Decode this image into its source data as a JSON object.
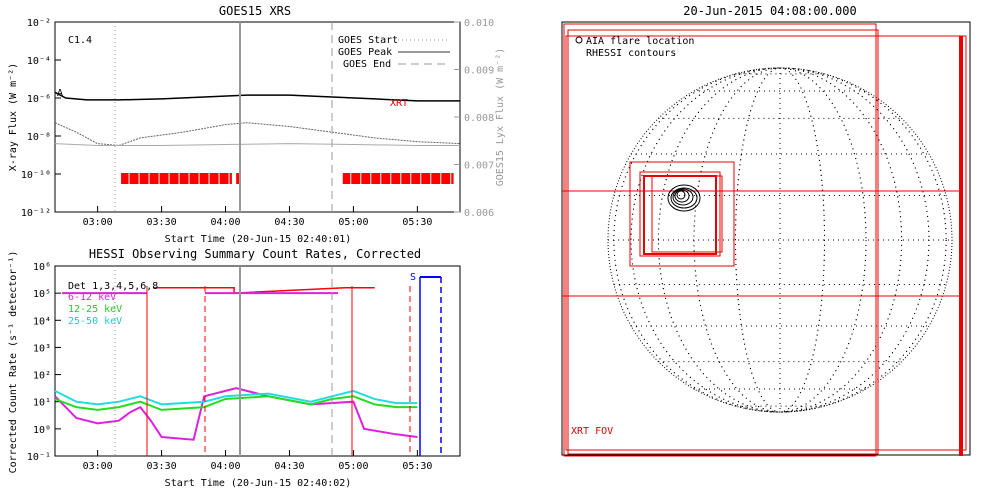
{
  "goes": {
    "title": "GOES15 XRS",
    "class_label": "C1.4",
    "xlabel": "Start Time (20-Jun-15 02:40:01)",
    "ylabel": "X-ray Flux (W m⁻²)",
    "y2label": "GOES15 Lyx Flux (W m⁻²)",
    "legend": [
      {
        "name": "GOES Start",
        "style": "dotted",
        "color": "#999999"
      },
      {
        "name": "GOES Peak",
        "style": "solid",
        "color": "#999999"
      },
      {
        "name": "GOES End",
        "style": "dashed",
        "color": "#999999"
      }
    ],
    "xrt_label": "XRT",
    "markers": {
      "start": "03:10",
      "peak": "04:07",
      "end": "04:52"
    },
    "yticks": [
      "10⁻²",
      "10⁻⁴",
      "10⁻⁶",
      "10⁻⁸",
      "10⁻¹⁰",
      "10⁻¹²"
    ],
    "y2ticks": [
      "0.010",
      "0.009",
      "0.008",
      "0.007",
      "0.006"
    ],
    "xticks": [
      "03:00",
      "03:30",
      "04:00",
      "04:30",
      "05:00",
      "05:30"
    ]
  },
  "hessi": {
    "title": "HESSI Observing Summary Count Rates, Corrected",
    "xlabel": "Start Time (20-Jun-15 02:40:02)",
    "ylabel": "Corrected Count Rate (s⁻¹ detector⁻¹)",
    "legend": [
      {
        "name": "Det 1,3,4,5,6,8",
        "color": "#000000"
      },
      {
        "name": "6-12 keV",
        "color": "#dd22dd"
      },
      {
        "name": "12-25 keV",
        "color": "#22dd22"
      },
      {
        "name": "25-50 keV",
        "color": "#22dddd"
      }
    ],
    "s_label": "S",
    "yticks": [
      "10⁶",
      "10⁵",
      "10⁴",
      "10³",
      "10²",
      "10¹",
      "10⁰",
      "10⁻¹"
    ],
    "xticks": [
      "03:00",
      "03:30",
      "04:00",
      "04:30",
      "05:00",
      "05:30"
    ]
  },
  "disk": {
    "title": "20-Jun-2015 04:08:00.000",
    "legend_line1": "AIA flare location",
    "legend_line2": "RHESSI contours",
    "fov_label": "XRT FOV"
  },
  "chart_data": [
    {
      "type": "line",
      "title": "GOES15 XRS",
      "xlabel": "Start Time (20-Jun-15 02:40:01)",
      "ylabel": "X-ray Flux (W m⁻²)",
      "ylim_exp": [
        -12,
        -2
      ],
      "xlim": [
        "02:40",
        "05:50"
      ],
      "series": [
        {
          "name": "",
          "color": "#000000",
          "x": [
            "02:40",
            "02:45",
            "02:55",
            "03:10",
            "03:30",
            "03:50",
            "04:10",
            "04:30",
            "04:50",
            "05:10",
            "05:30",
            "05:50"
          ],
          "log10_y": [
            -5.7,
            -6.0,
            -6.1,
            -6.1,
            -6.05,
            -5.95,
            -5.85,
            -5.85,
            -5.95,
            -6.05,
            -6.15,
            -6.15
          ]
        },
        {
          "name": "",
          "color": "#666666",
          "x": [
            "02:40",
            "02:50",
            "03:00",
            "03:10",
            "03:20",
            "03:40",
            "04:00",
            "04:10",
            "04:30",
            "04:50",
            "05:10",
            "05:30",
            "05:50"
          ],
          "log10_y": [
            -7.3,
            -7.8,
            -8.4,
            -8.5,
            -8.1,
            -7.8,
            -7.4,
            -7.3,
            -7.5,
            -7.8,
            -8.1,
            -8.3,
            -8.4
          ]
        },
        {
          "name": "",
          "color": "#aaaaaa",
          "x": [
            "02:40",
            "03:00",
            "03:30",
            "04:00",
            "04:30",
            "05:00",
            "05:30",
            "05:50"
          ],
          "log10_y": [
            -8.4,
            -8.5,
            -8.5,
            -8.45,
            -8.4,
            -8.45,
            -8.5,
            -8.5
          ]
        }
      ],
      "flags": [
        [
          "03:11",
          "04:03"
        ],
        [
          "04:05",
          "04:07"
        ],
        [
          "04:55",
          "05:47"
        ]
      ]
    },
    {
      "type": "line",
      "title": "HESSI Observing Summary Count Rates, Corrected",
      "xlabel": "Start Time (20-Jun-15 02:40:02)",
      "ylabel": "Corrected Count Rate (s⁻¹ detector⁻¹)",
      "ylim_exp": [
        -1,
        6
      ],
      "xlim": [
        "02:40",
        "05:50"
      ],
      "series": [
        {
          "name": "6-12 keV",
          "color": "#dd22dd",
          "x": [
            "02:40",
            "02:50",
            "03:00",
            "03:10",
            "03:15",
            "03:20",
            "03:25",
            "03:30",
            "03:45",
            "03:50",
            "04:00",
            "04:05",
            "04:20",
            "04:40",
            "05:00",
            "05:05",
            "05:20",
            "05:30"
          ],
          "log10_y": [
            1.2,
            0.4,
            0.2,
            0.3,
            0.6,
            0.8,
            0.3,
            -0.3,
            -0.4,
            1.2,
            1.4,
            1.5,
            1.2,
            0.9,
            1.0,
            0.0,
            -0.2,
            -0.3
          ]
        },
        {
          "name": "12-25 keV",
          "color": "#22dd22",
          "x": [
            "02:40",
            "02:50",
            "03:00",
            "03:10",
            "03:20",
            "03:30",
            "03:50",
            "04:00",
            "04:20",
            "04:40",
            "04:50",
            "05:00",
            "05:10",
            "05:20",
            "05:30"
          ],
          "log10_y": [
            1.1,
            0.8,
            0.7,
            0.8,
            1.0,
            0.7,
            0.8,
            1.1,
            1.2,
            0.9,
            1.1,
            1.2,
            0.9,
            0.8,
            0.8
          ]
        },
        {
          "name": "25-50 keV",
          "color": "#22dddd",
          "x": [
            "02:40",
            "02:50",
            "03:00",
            "03:10",
            "03:20",
            "03:30",
            "03:50",
            "04:00",
            "04:20",
            "04:40",
            "04:50",
            "05:00",
            "05:10",
            "05:20",
            "05:30"
          ],
          "log10_y": [
            1.4,
            1.0,
            0.9,
            1.0,
            1.2,
            0.9,
            1.0,
            1.2,
            1.3,
            1.0,
            1.2,
            1.4,
            1.1,
            0.95,
            0.95
          ]
        },
        {
          "name": "Det 1,3,4,5,6,8",
          "color": "#ff0000",
          "x": [
            "03:26",
            "04:04",
            "04:04",
            "04:56",
            "05:10"
          ],
          "log10_y": [
            5.2,
            5.2,
            5.0,
            5.2,
            5.2
          ]
        }
      ]
    }
  ]
}
